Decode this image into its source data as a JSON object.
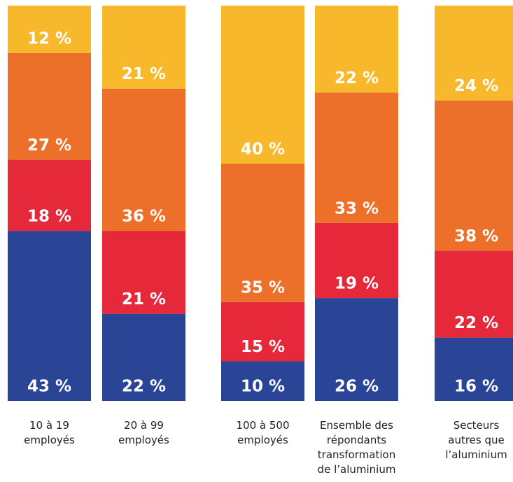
{
  "chart_data": {
    "type": "stacked_bar",
    "categories": [
      "10 à 19\nemployés",
      "20 à 99\nemployés",
      "100 à 500\nemployés",
      "Ensemble des\nrépondants\ntransformation\nde l’aluminium",
      "Secteurs\nautres que\nl’aluminium"
    ],
    "ylim": [
      0,
      100
    ],
    "series": [
      {
        "color": "#2a4596",
        "values": [
          43,
          22,
          10,
          26,
          16
        ],
        "value_labels": [
          "43 %",
          "22 %",
          "10 %",
          "26 %",
          "16 %"
        ]
      },
      {
        "color": "#e5283a",
        "values": [
          18,
          21,
          15,
          19,
          22
        ],
        "value_labels": [
          "18 %",
          "21 %",
          "15 %",
          "19 %",
          "22 %"
        ]
      },
      {
        "color": "#ec7029",
        "values": [
          27,
          36,
          35,
          33,
          38
        ],
        "value_labels": [
          "27 %",
          "36 %",
          "35 %",
          "33 %",
          "38 %"
        ]
      },
      {
        "color": "#f8b82b",
        "values": [
          12,
          21,
          40,
          22,
          24
        ],
        "value_labels": [
          "12 %",
          "21 %",
          "40 %",
          "22 %",
          "24 %"
        ]
      }
    ]
  }
}
